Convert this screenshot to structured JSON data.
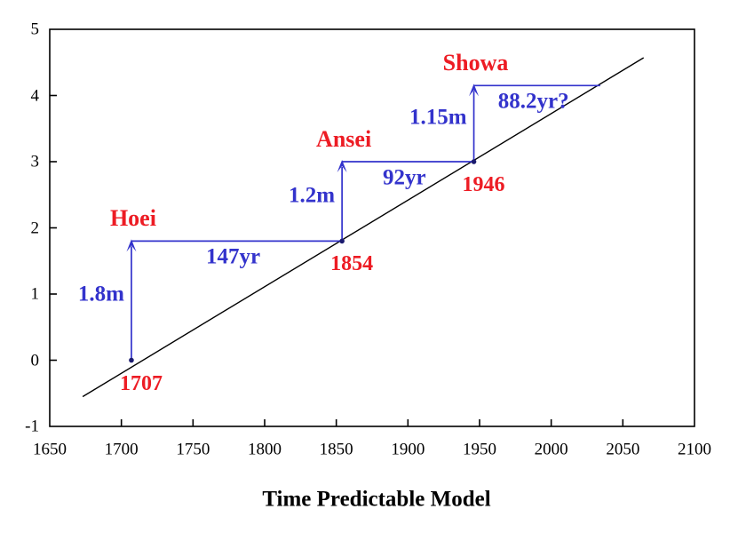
{
  "chart_data": {
    "type": "line",
    "title": "Time Predictable Model",
    "title_position": "below-x-axis",
    "xlim": [
      1650,
      2100
    ],
    "ylim": [
      -1,
      5
    ],
    "x_ticks": [
      "1650",
      "1700",
      "1750",
      "1800",
      "1850",
      "1900",
      "1950",
      "2000",
      "2050",
      "2100"
    ],
    "y_ticks": [
      "-1",
      "0",
      "1",
      "2",
      "3",
      "4",
      "5"
    ],
    "grid": false,
    "legend": false,
    "trend_line": {
      "x1": 1673,
      "y1": -0.55,
      "x2": 2064.5,
      "y2": 4.57
    },
    "events": [
      {
        "name": "Hoei",
        "year": 1707,
        "year_label": "1707",
        "cum_slip": 0,
        "slip": 1.8,
        "slip_label": "1.8m",
        "interval": 147,
        "interval_label": "147yr"
      },
      {
        "name": "Ansei",
        "year": 1854,
        "year_label": "1854",
        "cum_slip": 1.8,
        "slip": 1.2,
        "slip_label": "1.2m",
        "interval": 92,
        "interval_label": "92yr"
      },
      {
        "name": "Showa",
        "year": 1946,
        "year_label": "1946",
        "cum_slip": 3.0,
        "slip": 1.15,
        "slip_label": "1.15m",
        "interval": 88.2,
        "interval_label": "88.2yr?"
      }
    ],
    "colors": {
      "event_text": "#ED1C24",
      "annotation": "#3333CC",
      "trend_line": "#000000",
      "data_point": "#1A1A6E",
      "axis": "#000000",
      "background": "#FFFFFF"
    }
  }
}
